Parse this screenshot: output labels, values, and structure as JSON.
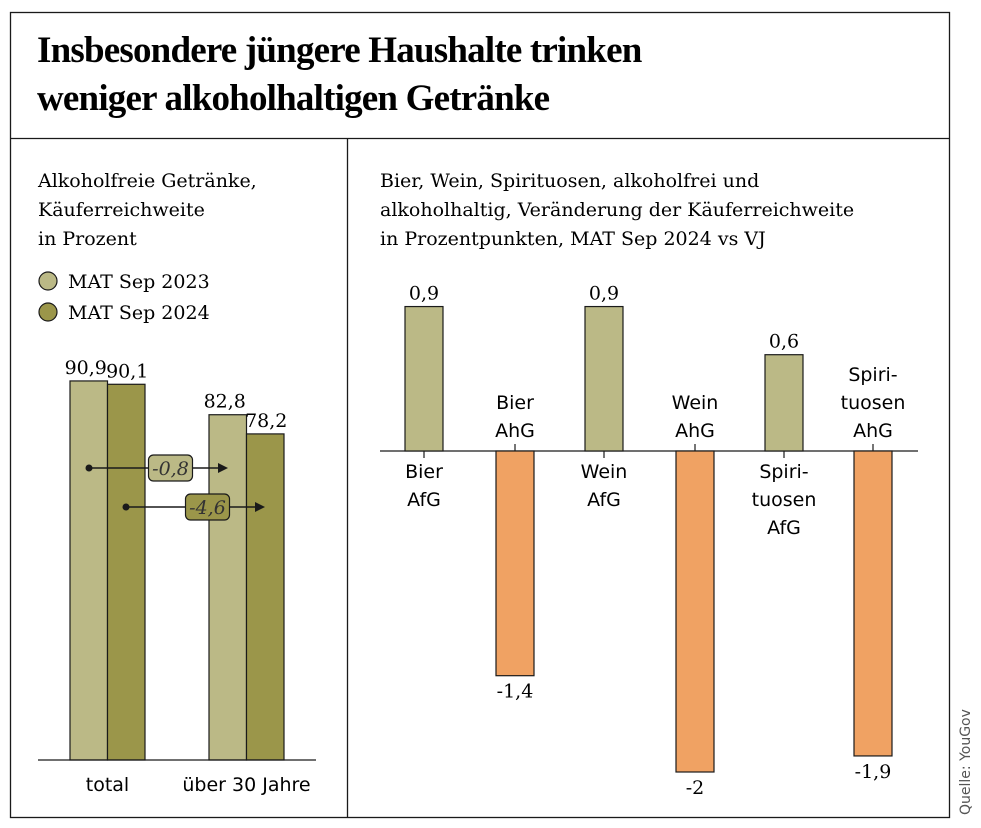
{
  "title": [
    "Insbesondere jüngere Haushalte trinken",
    "weniger alkoholhaltigen Getränke"
  ],
  "source": "Quelle: YouGov",
  "colors": {
    "mat2023": "#bbb986",
    "mat2024": "#9b964a",
    "negative": "#f0a263",
    "stroke": "#1a1a1a"
  },
  "chart_data": [
    {
      "type": "bar",
      "subtitle": [
        "Alkoholfreie Getränke,",
        "Käuferreichweite",
        "in Prozent"
      ],
      "legend": {
        "placement": "top-left",
        "entries": [
          "MAT Sep 2023",
          "MAT Sep 2024"
        ]
      },
      "categories": [
        "total",
        "über 30 Jahre"
      ],
      "series": [
        {
          "name": "MAT Sep 2023",
          "values": [
            90.9,
            82.8
          ],
          "labels": [
            "90,9",
            "82,8"
          ]
        },
        {
          "name": "MAT Sep 2024",
          "values": [
            90.1,
            78.2
          ],
          "labels": [
            "90,1",
            "78,2"
          ]
        }
      ],
      "annotations": [
        {
          "text": "-0,8",
          "series": "MAT Sep 2023"
        },
        {
          "text": "-4,6",
          "series": "MAT Sep 2024"
        }
      ],
      "ylim": [
        0,
        100
      ],
      "grid": false
    },
    {
      "type": "bar",
      "subtitle": [
        "Bier, Wein, Spirituosen, alkoholfrei und",
        "alkoholhaltig, Veränderung der Käuferreichweite",
        "in Prozentpunkten, MAT Sep 2024 vs VJ"
      ],
      "categories": [
        [
          "Bier",
          "AfG"
        ],
        [
          "Bier",
          "AhG"
        ],
        [
          "Wein",
          "AfG"
        ],
        [
          "Wein",
          "AhG"
        ],
        [
          "Spiri-",
          "tuosen",
          "AfG"
        ],
        [
          "Spiri-",
          "tuosen",
          "AhG"
        ]
      ],
      "values": [
        0.9,
        -1.4,
        0.9,
        -2,
        0.6,
        -1.9
      ],
      "labels": [
        "0,9",
        "-1,4",
        "0,9",
        "-2",
        "0,6",
        "-1,9"
      ],
      "ylim": [
        -2,
        0.9
      ],
      "grid": false
    }
  ]
}
